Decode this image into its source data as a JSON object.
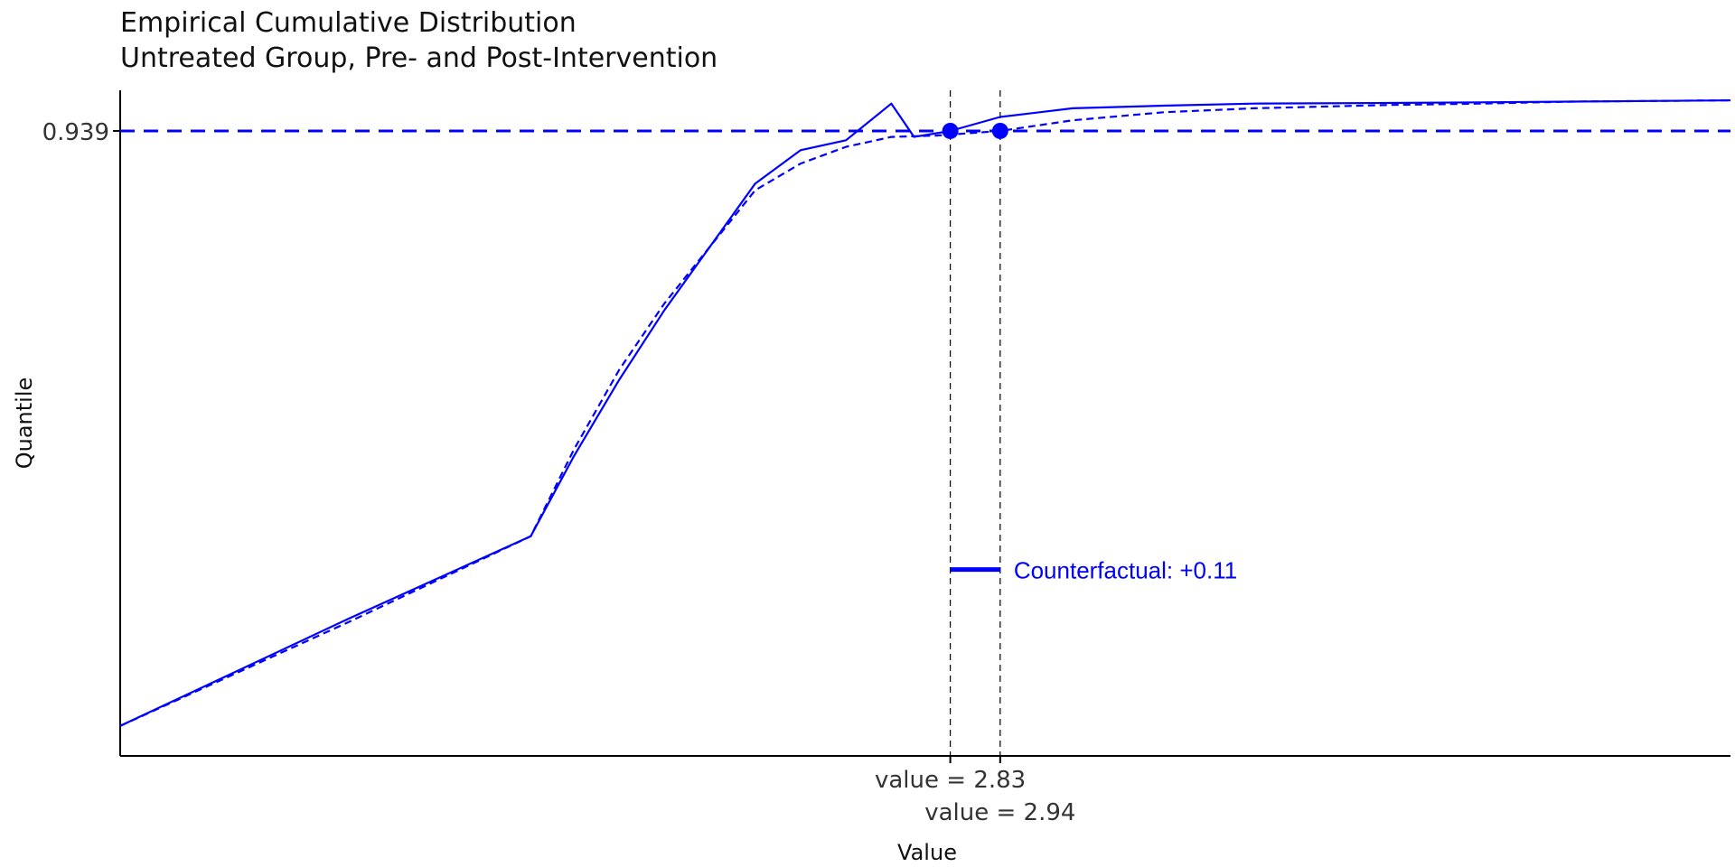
{
  "chart_data": {
    "type": "line",
    "title": "Empirical Cumulative Distribution",
    "subtitle": "Untreated Group, Pre- and Post-Intervention",
    "xlabel": "Value",
    "ylabel": "Quantile",
    "xlim": [
      1.0,
      4.55
    ],
    "ylim": [
      0.0,
      1.0
    ],
    "grid": false,
    "series": [
      {
        "style": "solid",
        "color": "#0000ff",
        "x": [
          1.0,
          1.5,
          1.905,
          2.0,
          2.1,
          2.2,
          2.4,
          2.5,
          2.6,
          2.7,
          2.75,
          2.83,
          2.94,
          3.1,
          3.3,
          3.5,
          3.8,
          4.0,
          4.2,
          4.55
        ],
        "y": [
          0.045,
          0.205,
          0.33,
          0.45,
          0.565,
          0.67,
          0.86,
          0.91,
          0.925,
          0.98,
          0.93,
          0.939,
          0.96,
          0.973,
          0.977,
          0.98,
          0.981,
          0.982,
          0.983,
          0.985
        ]
      },
      {
        "style": "dashed",
        "color": "#0000ff",
        "x": [
          1.0,
          1.5,
          1.905,
          2.0,
          2.1,
          2.2,
          2.4,
          2.5,
          2.6,
          2.7,
          2.8,
          2.94,
          3.1,
          3.3,
          3.5,
          3.8,
          4.0,
          4.2,
          4.55
        ],
        "y": [
          0.045,
          0.2,
          0.33,
          0.46,
          0.58,
          0.68,
          0.85,
          0.89,
          0.915,
          0.93,
          0.932,
          0.939,
          0.955,
          0.967,
          0.973,
          0.978,
          0.98,
          0.983,
          0.985
        ]
      }
    ],
    "reference_lines": {
      "hline_y": 0.939,
      "vline_x": [
        2.83,
        2.94
      ],
      "points": [
        {
          "x": 2.83,
          "y": 0.939
        },
        {
          "x": 2.94,
          "y": 0.939
        }
      ]
    },
    "yticks": [
      {
        "value": 0.939,
        "label": "0.939"
      }
    ],
    "xticks": [
      {
        "value": 2.83,
        "label": "value = 2.83"
      },
      {
        "value": 2.94,
        "label": "value = 2.94"
      }
    ],
    "annotation": {
      "text": "Counterfactual: +0.11",
      "x_start": 2.83,
      "x_end": 2.94,
      "y": 0.28,
      "color": "#0000ff"
    }
  }
}
